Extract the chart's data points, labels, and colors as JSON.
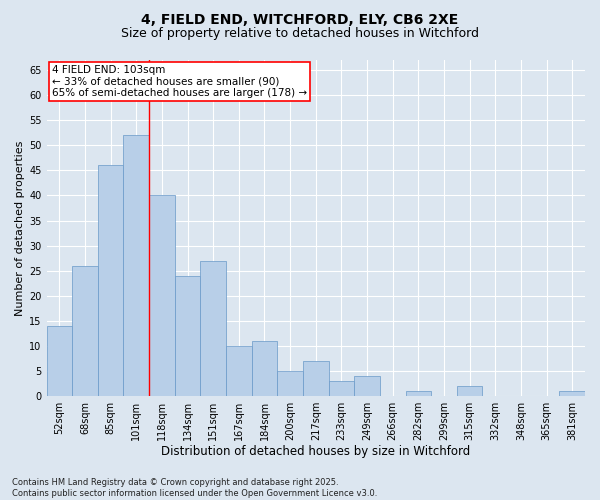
{
  "title1": "4, FIELD END, WITCHFORD, ELY, CB6 2XE",
  "title2": "Size of property relative to detached houses in Witchford",
  "xlabel": "Distribution of detached houses by size in Witchford",
  "ylabel": "Number of detached properties",
  "categories": [
    "52sqm",
    "68sqm",
    "85sqm",
    "101sqm",
    "118sqm",
    "134sqm",
    "151sqm",
    "167sqm",
    "184sqm",
    "200sqm",
    "217sqm",
    "233sqm",
    "249sqm",
    "266sqm",
    "282sqm",
    "299sqm",
    "315sqm",
    "332sqm",
    "348sqm",
    "365sqm",
    "381sqm"
  ],
  "values": [
    14,
    26,
    46,
    52,
    40,
    24,
    27,
    10,
    11,
    5,
    7,
    3,
    4,
    0,
    1,
    0,
    2,
    0,
    0,
    0,
    1
  ],
  "bar_color": "#b8cfe8",
  "bar_edge_color": "#6898c8",
  "highlight_line_bin": 3,
  "annotation_line1": "4 FIELD END: 103sqm",
  "annotation_line2": "← 33% of detached houses are smaller (90)",
  "annotation_line3": "65% of semi-detached houses are larger (178) →",
  "annotation_box_color": "white",
  "annotation_box_edge": "red",
  "ylim_max": 67,
  "yticks": [
    0,
    5,
    10,
    15,
    20,
    25,
    30,
    35,
    40,
    45,
    50,
    55,
    60,
    65
  ],
  "bg_color": "#dce6f0",
  "footer1": "Contains HM Land Registry data © Crown copyright and database right 2025.",
  "footer2": "Contains public sector information licensed under the Open Government Licence v3.0.",
  "title_fontsize": 10,
  "subtitle_fontsize": 9,
  "tick_fontsize": 7,
  "xlabel_fontsize": 8.5,
  "ylabel_fontsize": 8,
  "footer_fontsize": 6,
  "annotation_fontsize": 7.5
}
